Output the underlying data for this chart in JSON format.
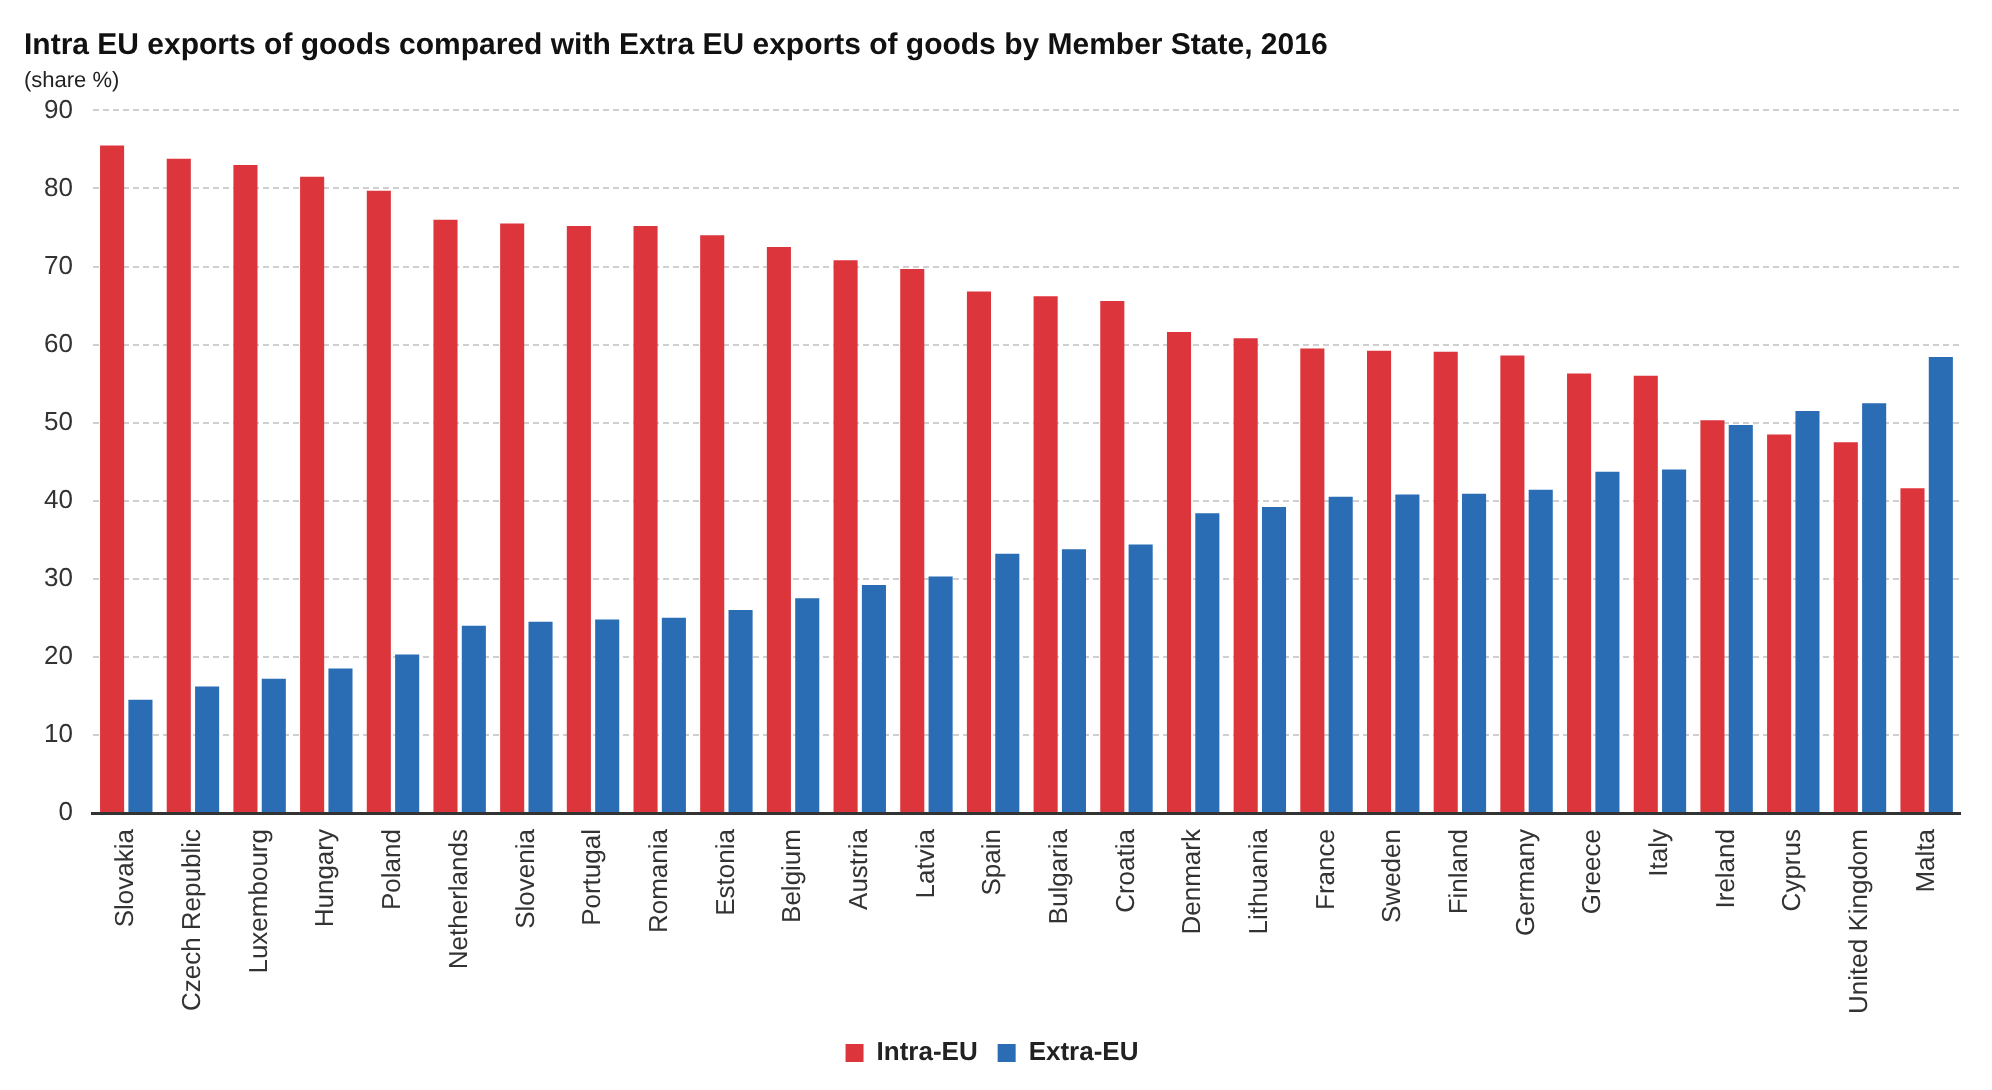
{
  "chart_data": {
    "type": "bar",
    "title": "Intra EU exports of goods compared with Extra EU exports of goods by Member State, 2016",
    "subtitle": "(share %)",
    "categories": [
      "Slovakia",
      "Czech Republic",
      "Luxembourg",
      "Hungary",
      "Poland",
      "Netherlands",
      "Slovenia",
      "Portugal",
      "Romania",
      "Estonia",
      "Belgium",
      "Austria",
      "Latvia",
      "Spain",
      "Bulgaria",
      "Croatia",
      "Denmark",
      "Lithuania",
      "France",
      "Sweden",
      "Finland",
      "Germany",
      "Greece",
      "Italy",
      "Ireland",
      "Cyprus",
      "United Kingdom",
      "Malta"
    ],
    "series": [
      {
        "name": "Intra-EU",
        "color": "#dc353c",
        "values": [
          85.5,
          83.8,
          83.0,
          81.5,
          79.7,
          76.0,
          75.5,
          75.2,
          75.2,
          74.0,
          72.5,
          70.8,
          69.7,
          66.8,
          66.2,
          65.6,
          61.6,
          60.8,
          59.5,
          59.2,
          59.1,
          58.6,
          56.3,
          56.0,
          50.3,
          48.5,
          47.5,
          41.6
        ]
      },
      {
        "name": "Extra-EU",
        "color": "#2a6db5",
        "values": [
          14.5,
          16.2,
          17.2,
          18.5,
          20.3,
          24.0,
          24.5,
          24.8,
          25.0,
          26.0,
          27.5,
          29.2,
          30.3,
          33.2,
          33.8,
          34.4,
          38.4,
          39.2,
          40.5,
          40.8,
          40.9,
          41.4,
          43.7,
          44.0,
          49.7,
          51.5,
          52.5,
          58.4
        ]
      }
    ],
    "ylim": [
      0,
      90
    ],
    "yticks": [
      0,
      10,
      20,
      30,
      40,
      50,
      60,
      70,
      80,
      90
    ],
    "grid": "y",
    "legend": "bottom"
  }
}
